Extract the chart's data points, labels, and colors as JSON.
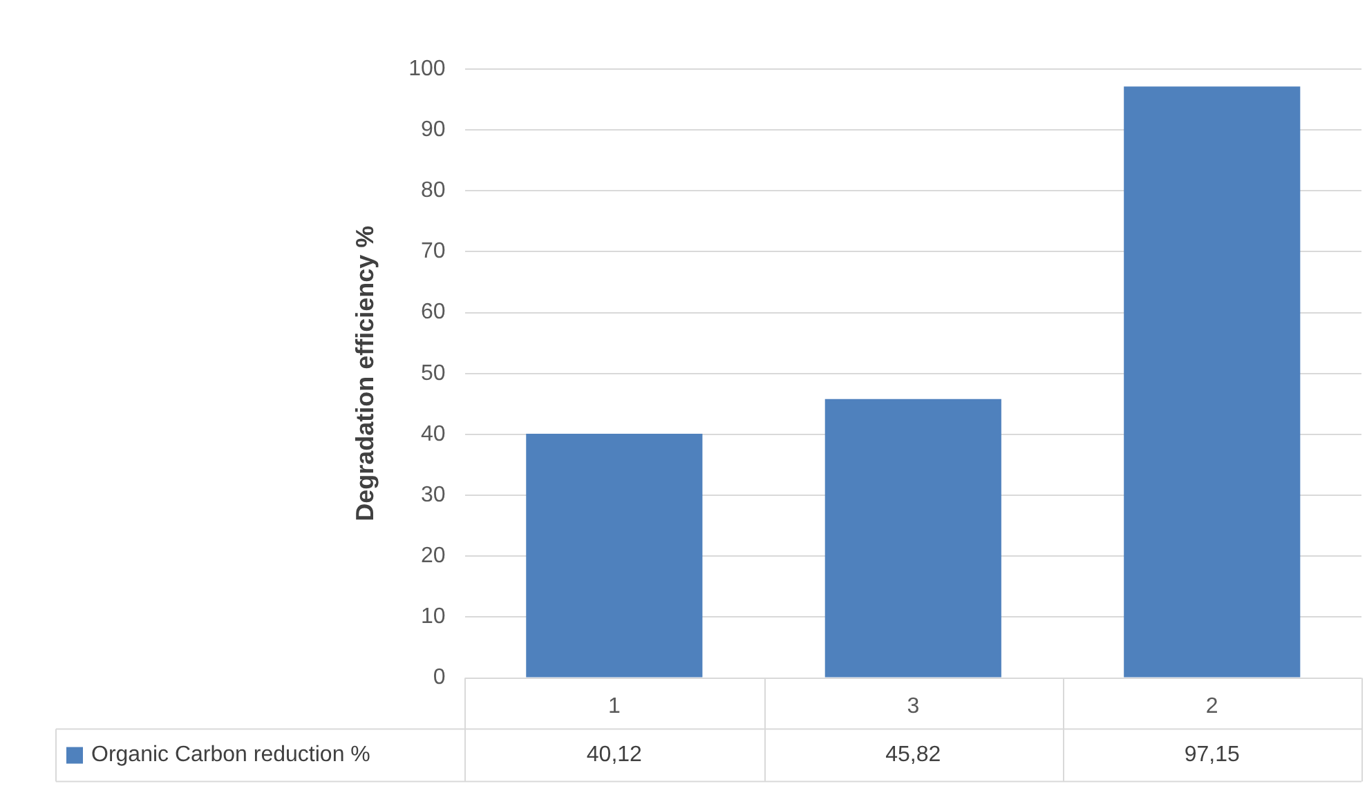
{
  "chart_data": {
    "type": "bar",
    "ylabel": "Degradation efficiency %",
    "categories": [
      "1",
      "3",
      "2"
    ],
    "series": [
      {
        "name": "Organic Carbon reduction %",
        "color": "#4f81bd",
        "values": [
          40.12,
          45.82,
          97.15
        ],
        "value_labels": [
          "40,12",
          "45,82",
          "97,15"
        ]
      }
    ],
    "ylim": [
      0,
      100
    ],
    "yticks": [
      0,
      10,
      20,
      30,
      40,
      50,
      60,
      70,
      80,
      90,
      100
    ],
    "grid": "y",
    "legend": "bottom left"
  }
}
